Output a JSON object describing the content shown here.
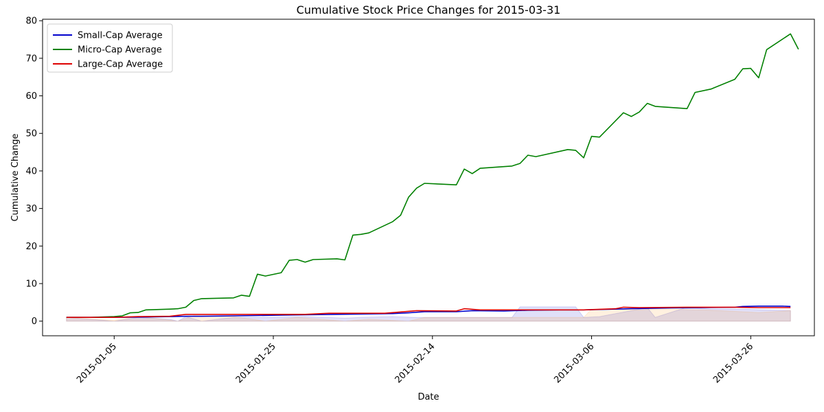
{
  "chart_data": {
    "type": "line",
    "title": "Cumulative Stock Price Changes for 2015-03-31",
    "xlabel": "Date",
    "ylabel": "Cumulative Change",
    "xlim": [
      "2014-12-27",
      "2015-04-03"
    ],
    "ylim": [
      -3.9,
      80.4
    ],
    "x_ticks": [
      "2015-01-05",
      "2015-01-25",
      "2015-02-14",
      "2015-03-06",
      "2015-03-26"
    ],
    "y_ticks": [
      0,
      10,
      20,
      30,
      40,
      50,
      60,
      70,
      80
    ],
    "grid": false,
    "legend_position": "upper left",
    "series": [
      {
        "name": "Small-Cap Average",
        "color": "#0000cc",
        "points": [
          [
            "2014-12-30",
            1.0
          ],
          [
            "2015-01-02",
            1.0
          ],
          [
            "2015-01-05",
            1.0
          ],
          [
            "2015-01-07",
            1.05
          ],
          [
            "2015-01-09",
            1.1
          ],
          [
            "2015-01-12",
            1.2
          ],
          [
            "2015-01-14",
            1.3
          ],
          [
            "2015-01-16",
            1.3
          ],
          [
            "2015-01-20",
            1.4
          ],
          [
            "2015-01-23",
            1.5
          ],
          [
            "2015-01-26",
            1.6
          ],
          [
            "2015-01-29",
            1.7
          ],
          [
            "2015-02-02",
            1.8
          ],
          [
            "2015-02-05",
            1.9
          ],
          [
            "2015-02-09",
            2.0
          ],
          [
            "2015-02-11",
            2.2
          ],
          [
            "2015-02-13",
            2.5
          ],
          [
            "2015-02-17",
            2.5
          ],
          [
            "2015-02-19",
            2.8
          ],
          [
            "2015-02-23",
            2.7
          ],
          [
            "2015-02-26",
            2.9
          ],
          [
            "2015-03-02",
            3.0
          ],
          [
            "2015-03-05",
            3.0
          ],
          [
            "2015-03-09",
            3.2
          ],
          [
            "2015-03-11",
            3.3
          ],
          [
            "2015-03-16",
            3.5
          ],
          [
            "2015-03-20",
            3.6
          ],
          [
            "2015-03-24",
            3.7
          ],
          [
            "2015-03-25",
            3.9
          ],
          [
            "2015-03-27",
            4.0
          ],
          [
            "2015-03-30",
            4.0
          ],
          [
            "2015-03-31",
            3.9
          ]
        ]
      },
      {
        "name": "Micro-Cap Average",
        "color": "#008000",
        "points": [
          [
            "2014-12-30",
            1.0
          ],
          [
            "2015-01-02",
            1.0
          ],
          [
            "2015-01-05",
            1.2
          ],
          [
            "2015-01-06",
            1.4
          ],
          [
            "2015-01-07",
            2.2
          ],
          [
            "2015-01-08",
            2.3
          ],
          [
            "2015-01-09",
            3.0
          ],
          [
            "2015-01-12",
            3.2
          ],
          [
            "2015-01-13",
            3.3
          ],
          [
            "2015-01-14",
            3.7
          ],
          [
            "2015-01-15",
            5.5
          ],
          [
            "2015-01-16",
            6.0
          ],
          [
            "2015-01-20",
            6.2
          ],
          [
            "2015-01-21",
            6.9
          ],
          [
            "2015-01-22",
            6.6
          ],
          [
            "2015-01-23",
            12.5
          ],
          [
            "2015-01-24",
            12.0
          ],
          [
            "2015-01-26",
            12.9
          ],
          [
            "2015-01-27",
            16.2
          ],
          [
            "2015-01-28",
            16.4
          ],
          [
            "2015-01-29",
            15.7
          ],
          [
            "2015-01-30",
            16.4
          ],
          [
            "2015-02-02",
            16.6
          ],
          [
            "2015-02-03",
            16.3
          ],
          [
            "2015-02-04",
            22.9
          ],
          [
            "2015-02-05",
            23.1
          ],
          [
            "2015-02-06",
            23.5
          ],
          [
            "2015-02-09",
            26.5
          ],
          [
            "2015-02-10",
            28.2
          ],
          [
            "2015-02-11",
            33.0
          ],
          [
            "2015-02-12",
            35.4
          ],
          [
            "2015-02-13",
            36.7
          ],
          [
            "2015-02-17",
            36.3
          ],
          [
            "2015-02-18",
            40.5
          ],
          [
            "2015-02-19",
            39.3
          ],
          [
            "2015-02-20",
            40.7
          ],
          [
            "2015-02-24",
            41.3
          ],
          [
            "2015-02-25",
            42.0
          ],
          [
            "2015-02-26",
            44.2
          ],
          [
            "2015-02-27",
            43.8
          ],
          [
            "2015-03-03",
            45.7
          ],
          [
            "2015-03-04",
            45.5
          ],
          [
            "2015-03-05",
            43.5
          ],
          [
            "2015-03-06",
            49.2
          ],
          [
            "2015-03-07",
            49.0
          ],
          [
            "2015-03-10",
            55.5
          ],
          [
            "2015-03-11",
            54.5
          ],
          [
            "2015-03-12",
            55.7
          ],
          [
            "2015-03-13",
            58.0
          ],
          [
            "2015-03-14",
            57.2
          ],
          [
            "2015-03-18",
            56.6
          ],
          [
            "2015-03-19",
            60.9
          ],
          [
            "2015-03-21",
            61.8
          ],
          [
            "2015-03-24",
            64.4
          ],
          [
            "2015-03-25",
            67.2
          ],
          [
            "2015-03-26",
            67.3
          ],
          [
            "2015-03-27",
            64.8
          ],
          [
            "2015-03-28",
            72.3
          ],
          [
            "2015-03-31",
            76.5
          ],
          [
            "2015-04-01",
            72.4
          ]
        ]
      },
      {
        "name": "Large-Cap Average",
        "color": "#dd0000",
        "points": [
          [
            "2014-12-30",
            1.0
          ],
          [
            "2015-01-02",
            1.0
          ],
          [
            "2015-01-05",
            1.0
          ],
          [
            "2015-01-08",
            1.2
          ],
          [
            "2015-01-12",
            1.3
          ],
          [
            "2015-01-14",
            1.8
          ],
          [
            "2015-01-16",
            1.8
          ],
          [
            "2015-01-20",
            1.8
          ],
          [
            "2015-01-23",
            1.8
          ],
          [
            "2015-01-26",
            1.8
          ],
          [
            "2015-01-29",
            1.8
          ],
          [
            "2015-02-01",
            2.1
          ],
          [
            "2015-02-04",
            2.1
          ],
          [
            "2015-02-08",
            2.1
          ],
          [
            "2015-02-12",
            2.8
          ],
          [
            "2015-02-17",
            2.7
          ],
          [
            "2015-02-18",
            3.3
          ],
          [
            "2015-02-20",
            3.0
          ],
          [
            "2015-02-26",
            3.0
          ],
          [
            "2015-03-03",
            3.0
          ],
          [
            "2015-03-05",
            3.0
          ],
          [
            "2015-03-09",
            3.3
          ],
          [
            "2015-03-10",
            3.7
          ],
          [
            "2015-03-12",
            3.6
          ],
          [
            "2015-03-18",
            3.7
          ],
          [
            "2015-03-24",
            3.7
          ],
          [
            "2015-03-27",
            3.6
          ],
          [
            "2015-03-31",
            3.6
          ]
        ]
      }
    ],
    "shaded_bands": [
      {
        "color": "#0000cc",
        "points": [
          [
            "2014-12-30",
            1.0
          ],
          [
            "2015-01-02",
            0.5
          ],
          [
            "2015-01-05",
            0.0
          ],
          [
            "2015-01-08",
            1.0
          ],
          [
            "2015-01-12",
            0.5
          ],
          [
            "2015-01-13",
            0.0
          ],
          [
            "2015-01-14",
            1.2
          ],
          [
            "2015-01-16",
            0.0
          ],
          [
            "2015-01-20",
            1.0
          ],
          [
            "2015-01-24",
            1.0
          ],
          [
            "2015-01-29",
            1.2
          ],
          [
            "2015-02-03",
            0.8
          ],
          [
            "2015-02-05",
            1.0
          ],
          [
            "2015-02-09",
            1.2
          ],
          [
            "2015-02-12",
            1.0
          ],
          [
            "2015-02-24",
            1.0
          ],
          [
            "2015-02-25",
            3.8
          ],
          [
            "2015-03-04",
            3.8
          ],
          [
            "2015-03-05",
            1.0
          ],
          [
            "2015-03-07",
            1.2
          ],
          [
            "2015-03-13",
            3.6
          ],
          [
            "2015-03-14",
            1.0
          ],
          [
            "2015-03-18",
            3.7
          ],
          [
            "2015-03-21",
            3.2
          ],
          [
            "2015-03-25",
            3.2
          ],
          [
            "2015-03-31",
            2.8
          ]
        ]
      },
      {
        "color": "#ff8c00",
        "points": [
          [
            "2014-12-30",
            1.0
          ],
          [
            "2015-01-05",
            0.2
          ],
          [
            "2015-01-08",
            1.3
          ],
          [
            "2015-01-13",
            0.0
          ],
          [
            "2015-01-15",
            1.5
          ],
          [
            "2015-01-20",
            1.2
          ],
          [
            "2015-01-24",
            0.0
          ],
          [
            "2015-01-28",
            1.0
          ],
          [
            "2015-02-03",
            0.0
          ],
          [
            "2015-02-06",
            0.5
          ],
          [
            "2015-02-11",
            0.0
          ],
          [
            "2015-02-13",
            1.0
          ],
          [
            "2015-02-20",
            1.0
          ],
          [
            "2015-03-05",
            1.0
          ],
          [
            "2015-03-06",
            3.2
          ],
          [
            "2015-03-12",
            3.0
          ],
          [
            "2015-03-14",
            3.3
          ],
          [
            "2015-03-20",
            3.0
          ],
          [
            "2015-03-27",
            2.3
          ],
          [
            "2015-03-31",
            2.8
          ]
        ]
      }
    ]
  }
}
